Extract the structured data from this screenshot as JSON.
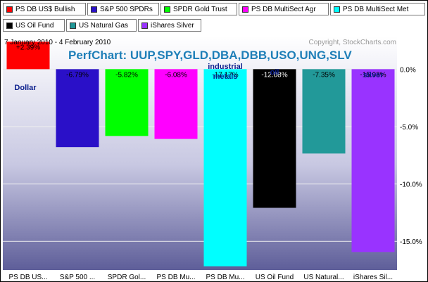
{
  "legend": [
    {
      "label": "PS DB US$ Bullish",
      "color": "#ff0000"
    },
    {
      "label": "S&P 500 SPDRs",
      "color": "#2a10c8"
    },
    {
      "label": "SPDR Gold Trust",
      "color": "#00ff00"
    },
    {
      "label": "PS DB MultiSect  Agr",
      "color": "#ff00ff"
    },
    {
      "label": "PS DB MultiSect Met",
      "color": "#00ffff"
    },
    {
      "label": "US Oil Fund",
      "color": "#000000"
    },
    {
      "label": "US Natural Gas",
      "color": "#229999"
    },
    {
      "label": "iShares Silver",
      "color": "#9933ff"
    }
  ],
  "date_range": "7 January 2010 - 4 February 2010",
  "copyright": "Copyright, StockCharts.com",
  "chart_data": {
    "type": "bar",
    "title": "PerfChart: UUP,SPY,GLD,DBA,DBB,USO,UNG,SLV",
    "categories": [
      "PS DB US...",
      "S&P 500 ...",
      "SPDR Gol...",
      "PS DB Mu...",
      "PS DB Mu...",
      "US Oil Fund",
      "US Natural...",
      "iShares Sil..."
    ],
    "values": [
      2.39,
      -6.79,
      -5.82,
      -6.08,
      -17.17,
      -12.08,
      -7.35,
      -15.93
    ],
    "value_labels": [
      "+2.39%",
      "-6.79%",
      "-5.82%",
      "-6.08%",
      "-17.17%",
      "-12.08%",
      "-7.35%",
      "-15.93%"
    ],
    "colors": [
      "#ff0000",
      "#2a10c8",
      "#00ff00",
      "#ff00ff",
      "#00ffff",
      "#000000",
      "#229999",
      "#9933ff"
    ],
    "y_ticks": [
      0,
      -5,
      -10,
      -15
    ],
    "y_tick_labels": [
      "0.0%",
      "-5.0%",
      "-10.0%",
      "-15.0%"
    ],
    "ylim": [
      -17.5,
      2.9
    ],
    "grid": true,
    "annotations": [
      {
        "text": "Dollar",
        "bar": 0
      },
      {
        "text": "industrial",
        "bar": 4
      },
      {
        "text": "metals",
        "bar": 4
      },
      {
        "text": "oil",
        "bar": 5
      },
      {
        "text": "silver",
        "bar": 7
      }
    ]
  }
}
